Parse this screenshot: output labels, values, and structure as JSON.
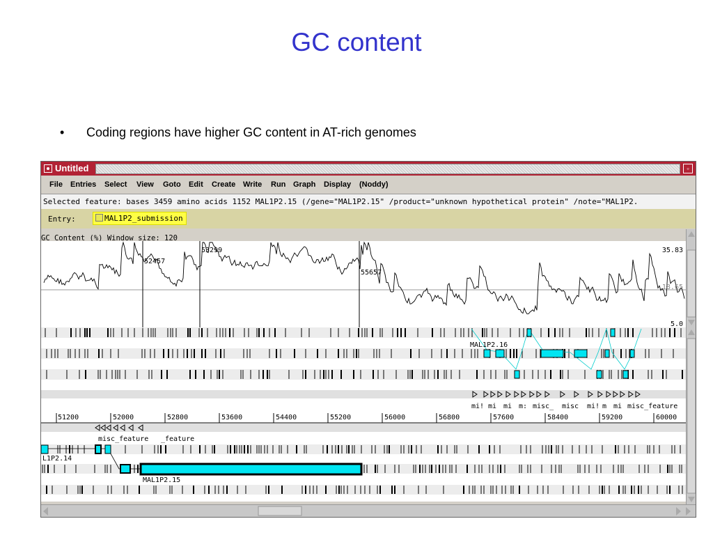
{
  "slide": {
    "title": "GC content",
    "bullet": "Coding regions have higher GC content in AT-rich genomes"
  },
  "window": {
    "title": "Untitled",
    "menu": [
      "File",
      "Entries",
      "Select",
      "View",
      "Goto",
      "Edit",
      "Create",
      "Write",
      "Run",
      "Graph",
      "Display",
      "(Noddy)"
    ],
    "selected_feature": "Selected feature:  bases 3459  amino acids 1152  MAL1P2.15  (/gene=\"MAL1P2.15\" /product=\"unknown hypothetical protein\" /note=\"MAL1P2.",
    "entry_label": "Entry:",
    "entry_name": "MAL1P2_submission",
    "colors": {
      "titlebar": "#b22234",
      "feature": "#00e5f2",
      "entry_highlight": "#ffff44"
    }
  },
  "graph": {
    "label": "GC Content (%)  Window size: 120",
    "y_max_label": "35.83",
    "y_mid_label": "18.65",
    "y_min_label": "5.0",
    "markers": [
      "52457",
      "53299",
      "55657"
    ]
  },
  "features": {
    "top_feature_label": "MAL1P2.16",
    "misc_labels": [
      "mi!",
      "mi",
      "mi",
      "m:",
      "misc_",
      "misc",
      "mi!",
      "m",
      "mi",
      "misc_feature"
    ],
    "bottom_misc_label_1": "misc_feature",
    "bottom_misc_label_2": "_feature",
    "left_gene_label": "L1P2.14",
    "selected_gene_label": "MAL1P2.15"
  },
  "ruler": {
    "ticks": [
      "51200",
      "52000",
      "52800",
      "53600",
      "54400",
      "55200",
      "56000",
      "56800",
      "57600",
      "58400",
      "59200",
      "60000"
    ]
  },
  "icons": [
    "window-menu-icon",
    "maximize-icon",
    "scroll-up-icon",
    "scroll-down-icon",
    "scroll-left-icon",
    "scroll-right-icon"
  ]
}
